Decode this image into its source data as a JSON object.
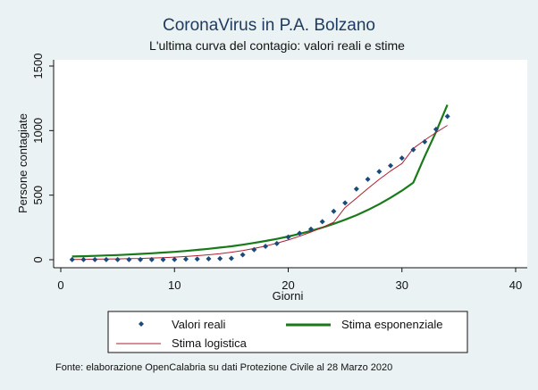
{
  "chart_data": {
    "type": "scatter",
    "title": "CoronaVirus in P.A. Bolzano",
    "subtitle": "L'ultima curva del contagio: valori reali e stime",
    "xlabel": "Giorni",
    "ylabel": "Persone contagiate",
    "xlim": [
      0,
      40
    ],
    "ylim": [
      0,
      1500
    ],
    "xticks": [
      "0",
      "10",
      "20",
      "30",
      "40"
    ],
    "yticks": [
      "0",
      "500",
      "1000",
      "1500"
    ],
    "grid": false,
    "legend_position": "bottom",
    "series": [
      {
        "name": "Valori reali",
        "kind": "markers",
        "color": "#1a4a7a",
        "x": [
          1,
          2,
          3,
          4,
          5,
          6,
          7,
          8,
          9,
          10,
          11,
          12,
          13,
          14,
          15,
          16,
          17,
          18,
          19,
          20,
          21,
          22,
          23,
          24,
          25,
          26,
          27,
          28,
          29,
          30,
          31,
          32,
          33,
          34
        ],
        "y": [
          1,
          1,
          1,
          1,
          1,
          1,
          1,
          1,
          1,
          2,
          4,
          5,
          7,
          9,
          10,
          38,
          78,
          104,
          125,
          175,
          205,
          237,
          295,
          375,
          440,
          548,
          623,
          683,
          728,
          787,
          852,
          913,
          1010,
          1110
        ]
      },
      {
        "name": "Stima esponenziale",
        "kind": "line",
        "color": "#1a7a1a",
        "x": [
          1,
          2,
          3,
          4,
          5,
          6,
          7,
          8,
          9,
          10,
          11,
          12,
          13,
          14,
          15,
          16,
          17,
          18,
          19,
          20,
          21,
          22,
          23,
          24,
          25,
          26,
          27,
          28,
          29,
          30,
          31,
          32,
          33,
          34
        ],
        "y": [
          25,
          27,
          30,
          33,
          36,
          40,
          45,
          50,
          55,
          61,
          68,
          76,
          84,
          94,
          104,
          116,
          130,
          145,
          161,
          180,
          200,
          223,
          249,
          278,
          310,
          345,
          385,
          430,
          480,
          535,
          597,
          800,
          990,
          1200
        ]
      },
      {
        "name": "Stima logistica",
        "kind": "line",
        "color": "#b01d2e",
        "x": [
          1,
          2,
          3,
          4,
          5,
          6,
          7,
          8,
          9,
          10,
          11,
          12,
          13,
          14,
          15,
          16,
          17,
          18,
          19,
          20,
          21,
          22,
          23,
          24,
          25,
          26,
          27,
          28,
          29,
          30,
          31,
          32,
          33,
          34
        ],
        "y": [
          2,
          3,
          4,
          5,
          6,
          8,
          10,
          13,
          16,
          20,
          25,
          31,
          38,
          47,
          58,
          71,
          87,
          106,
          128,
          153,
          182,
          214,
          250,
          290,
          404,
          477,
          551,
          622,
          687,
          745,
          862,
          926,
          985,
          1040
        ]
      }
    ],
    "note": "Fonte: elaborazione OpenCalabria su dati Protezione Civile al 28 Marzo 2020"
  }
}
